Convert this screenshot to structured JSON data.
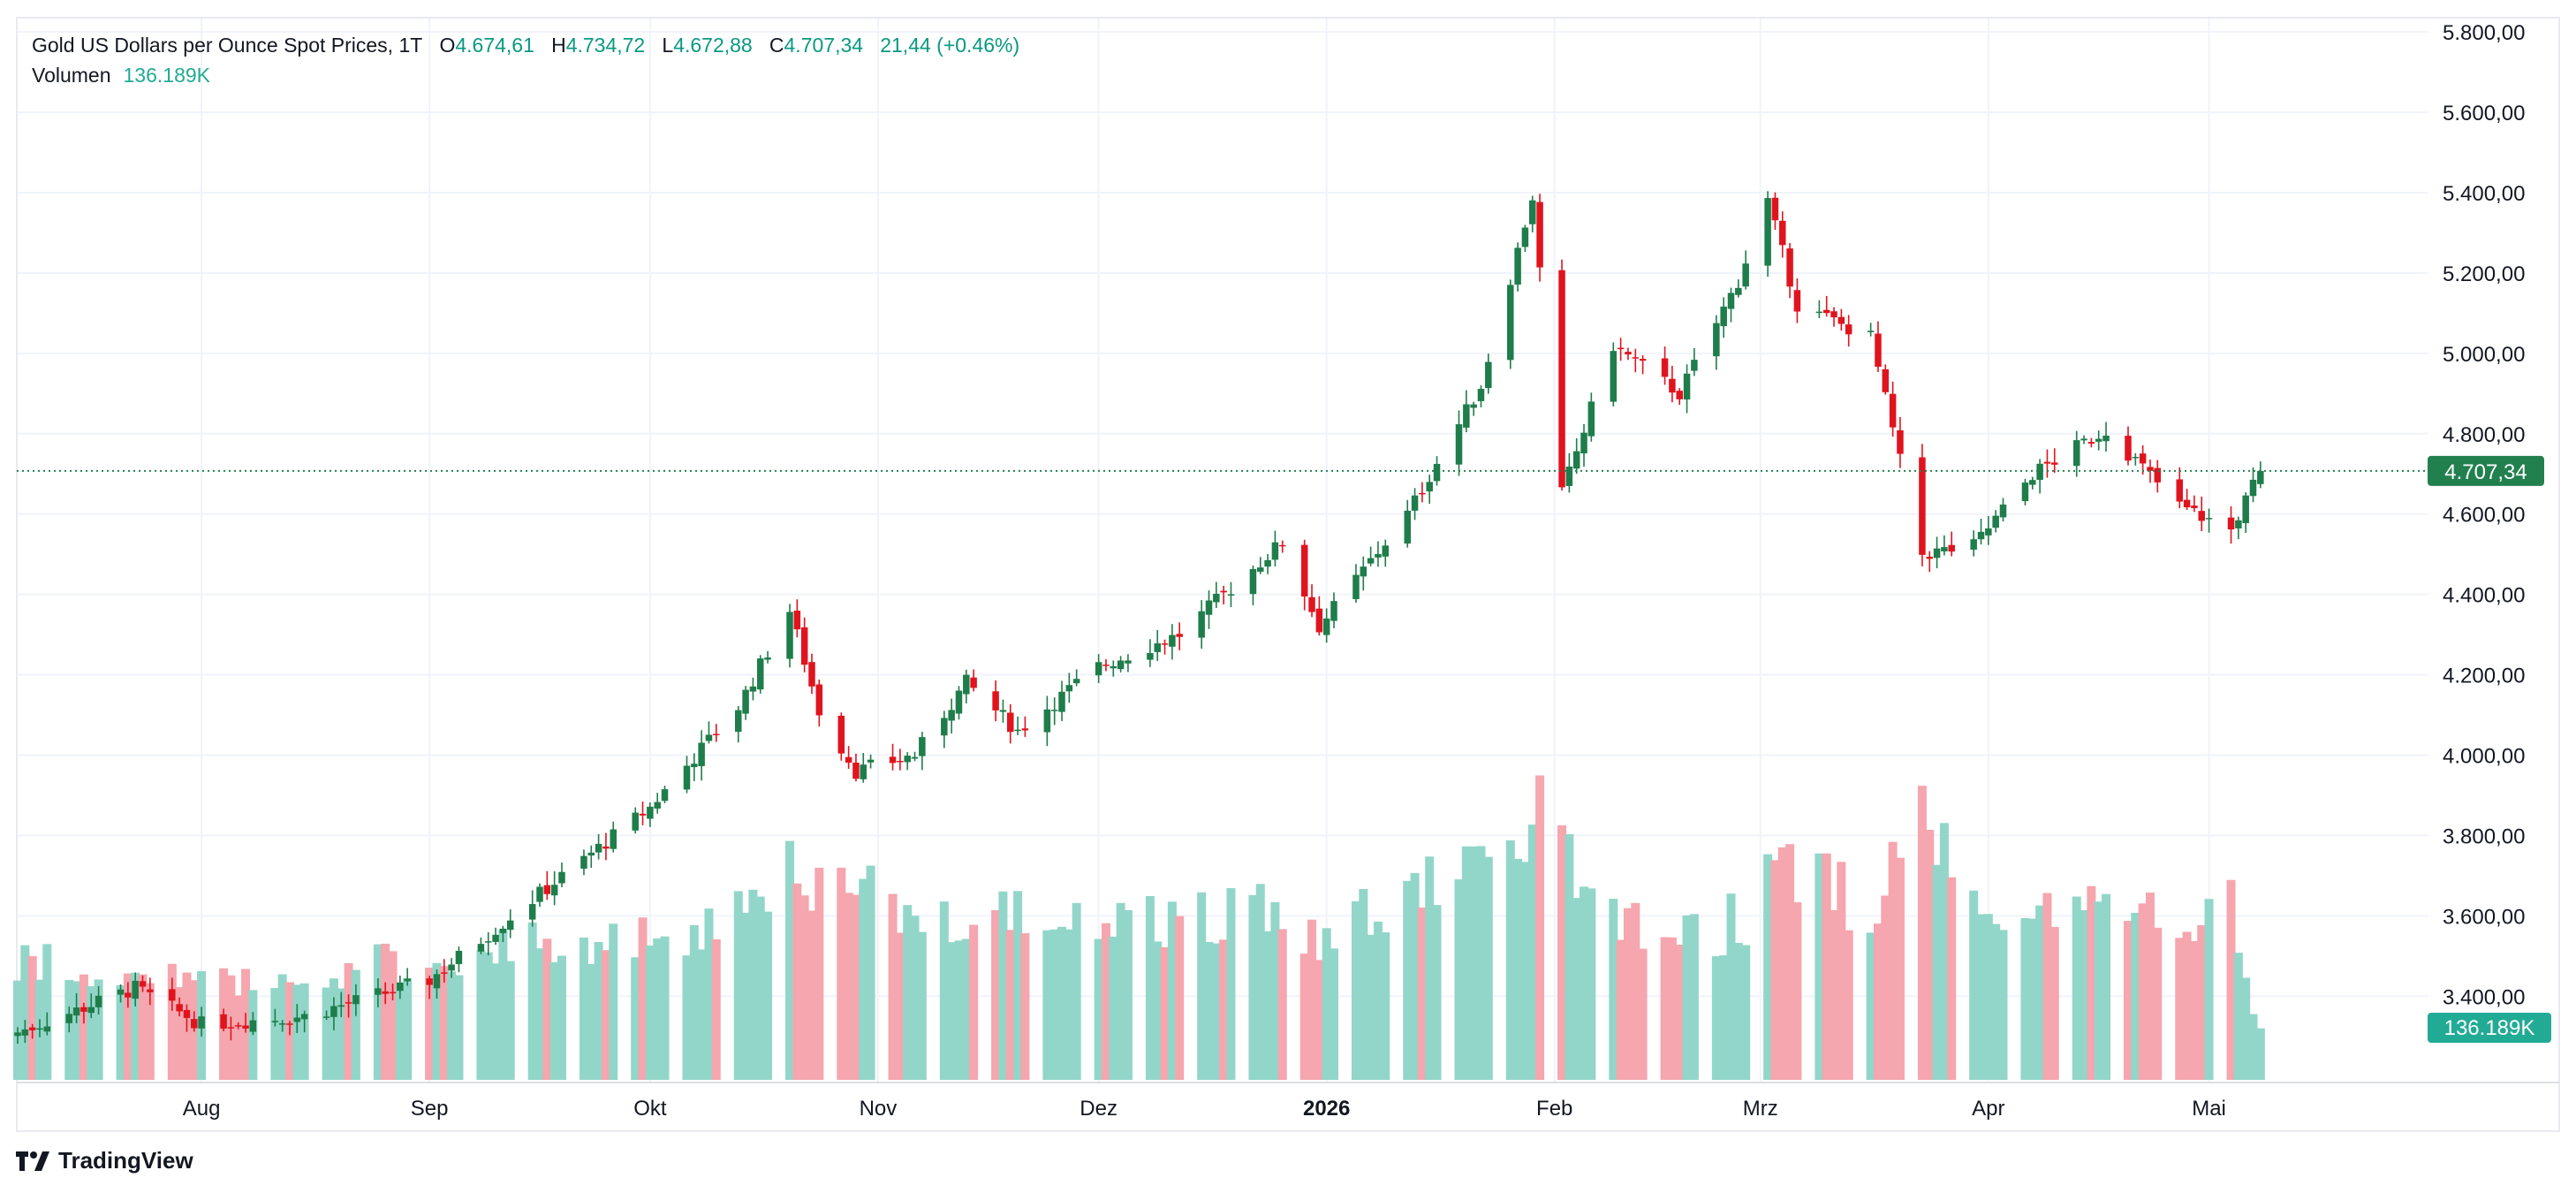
{
  "legend": {
    "symbol": "Gold US Dollars per Ounce Spot Prices, 1T",
    "o_label": "O",
    "o_value": "4.674,61",
    "h_label": "H",
    "h_value": "4.734,72",
    "l_label": "L",
    "l_value": "4.672,88",
    "c_label": "C",
    "c_value": "4.707,34",
    "change": "21,44 (+0.46%)",
    "volume_label": "Volumen",
    "volume_value": "136.189K"
  },
  "footer": {
    "brand": "TradingView"
  },
  "colors": {
    "up": "#1e7d4a",
    "down": "#e0141e",
    "vol_up": "#92d6c9",
    "vol_down": "#f5a6ae",
    "last_price_tag": "#22804f",
    "volume_tag": "#22ab94",
    "grid": "#f0f3fa"
  },
  "chart_data": {
    "type": "candlestick",
    "title": "Gold US Dollars per Ounce Spot Prices, 1T",
    "xlabel": "",
    "ylabel": "",
    "ylim": [
      3240,
      5840
    ],
    "y_ticks": [
      "3.400,00",
      "3.600,00",
      "3.800,00",
      "4.000,00",
      "4.200,00",
      "4.400,00",
      "4.600,00",
      "4.800,00",
      "5.000,00",
      "5.200,00",
      "5.400,00",
      "5.600,00",
      "5.800,00"
    ],
    "y_tick_values": [
      3400,
      3600,
      3800,
      4000,
      4200,
      4400,
      4600,
      4800,
      5000,
      5200,
      5400,
      5600,
      5800
    ],
    "x_ticks": [
      {
        "label": "Aug",
        "date": "2025-08-01",
        "bold": false
      },
      {
        "label": "Sep",
        "date": "2025-09-01",
        "bold": false
      },
      {
        "label": "Okt",
        "date": "2025-10-01",
        "bold": false
      },
      {
        "label": "Nov",
        "date": "2025-11-01",
        "bold": false
      },
      {
        "label": "Dez",
        "date": "2025-12-01",
        "bold": false
      },
      {
        "label": "2026",
        "date": "2026-01-01",
        "bold": true
      },
      {
        "label": "Feb",
        "date": "2026-02-01",
        "bold": false
      },
      {
        "label": "Mrz",
        "date": "2026-03-01",
        "bold": false
      },
      {
        "label": "Apr",
        "date": "2026-04-01",
        "bold": false
      },
      {
        "label": "Mai",
        "date": "2026-05-01",
        "bold": false
      }
    ],
    "x_range": [
      "2025-07-07",
      "2026-06-30"
    ],
    "last_price": 4707.34,
    "last_price_label": "4.707,34",
    "last_volume_label": "136.189K",
    "volume_max_k": 700,
    "grid": true,
    "anchors": [
      {
        "date": "2025-07-07",
        "close": 3310,
        "volume_k": 310
      },
      {
        "date": "2025-07-23",
        "close": 3420,
        "volume_k": 290
      },
      {
        "date": "2025-08-01",
        "close": 3330,
        "volume_k": 250
      },
      {
        "date": "2025-08-15",
        "close": 3350,
        "volume_k": 270
      },
      {
        "date": "2025-09-01",
        "close": 3440,
        "volume_k": 320
      },
      {
        "date": "2025-09-15",
        "close": 3640,
        "volume_k": 360
      },
      {
        "date": "2025-10-01",
        "close": 3870,
        "volume_k": 360
      },
      {
        "date": "2025-10-13",
        "close": 4120,
        "volume_k": 480
      },
      {
        "date": "2025-10-20",
        "close": 4360,
        "volume_k": 560
      },
      {
        "date": "2025-10-24",
        "close": 4110,
        "volume_k": 520
      },
      {
        "date": "2025-10-29",
        "close": 3960,
        "volume_k": 500
      },
      {
        "date": "2025-11-06",
        "close": 4000,
        "volume_k": 430
      },
      {
        "date": "2025-11-13",
        "close": 4180,
        "volume_k": 460
      },
      {
        "date": "2025-11-20",
        "close": 4060,
        "volume_k": 420
      },
      {
        "date": "2025-12-01",
        "close": 4220,
        "volume_k": 440
      },
      {
        "date": "2025-12-12",
        "close": 4300,
        "volume_k": 420
      },
      {
        "date": "2025-12-26",
        "close": 4530,
        "volume_k": 470
      },
      {
        "date": "2025-12-31",
        "close": 4320,
        "volume_k": 380
      },
      {
        "date": "2026-01-12",
        "close": 4600,
        "volume_k": 480
      },
      {
        "date": "2026-01-22",
        "close": 4920,
        "volume_k": 560
      },
      {
        "date": "2026-01-29",
        "close": 5390,
        "volume_k": 690
      },
      {
        "date": "2026-02-02",
        "close": 4650,
        "volume_k": 620
      },
      {
        "date": "2026-02-09",
        "close": 5020,
        "volume_k": 450
      },
      {
        "date": "2026-02-18",
        "close": 4900,
        "volume_k": 380
      },
      {
        "date": "2026-02-26",
        "close": 5180,
        "volume_k": 420
      },
      {
        "date": "2026-03-02",
        "close": 5380,
        "volume_k": 500
      },
      {
        "date": "2026-03-06",
        "close": 5120,
        "volume_k": 540
      },
      {
        "date": "2026-03-16",
        "close": 5040,
        "volume_k": 470
      },
      {
        "date": "2026-03-23",
        "close": 4500,
        "volume_k": 680
      },
      {
        "date": "2026-03-30",
        "close": 4520,
        "volume_k": 520
      },
      {
        "date": "2026-04-07",
        "close": 4700,
        "volume_k": 460
      },
      {
        "date": "2026-04-17",
        "close": 4810,
        "volume_k": 440
      },
      {
        "date": "2026-04-27",
        "close": 4620,
        "volume_k": 450
      },
      {
        "date": "2026-05-04",
        "close": 4560,
        "volume_k": 450
      },
      {
        "date": "2026-05-08",
        "close": 4707.34,
        "volume_k": 136.189
      }
    ]
  }
}
